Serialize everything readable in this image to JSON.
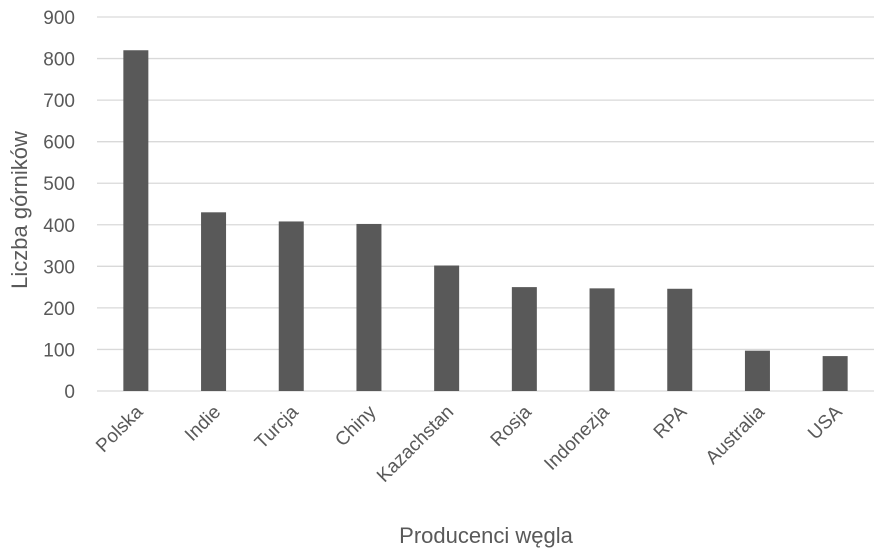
{
  "chart_data": {
    "type": "bar",
    "categories": [
      "Polska",
      "Indie",
      "Turcja",
      "Chiny",
      "Kazachstan",
      "Rosja",
      "Indonezja",
      "RPA",
      "Australia",
      "USA"
    ],
    "values": [
      820,
      430,
      408,
      402,
      302,
      250,
      247,
      246,
      97,
      84
    ],
    "xlabel": "Producenci węgla",
    "ylabel": "Liczba górników",
    "ylim": [
      0,
      900
    ],
    "yticks": [
      0,
      100,
      200,
      300,
      400,
      500,
      600,
      700,
      800,
      900
    ],
    "bar_color": "#595959",
    "grid": true,
    "legend": "none"
  }
}
